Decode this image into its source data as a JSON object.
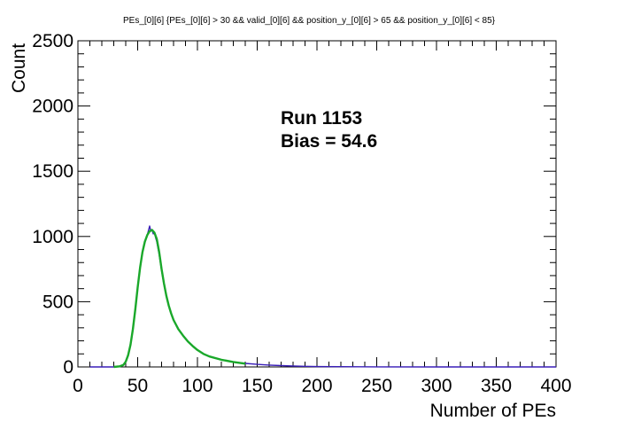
{
  "chart_data": {
    "type": "line",
    "title": "PEs_[0][6]  {PEs_[0][6] > 30 && valid_[0][6] && position_y_[0][6] > 65 && position_y_[0][6] < 85}",
    "xlabel": "Number of PEs",
    "ylabel": "Count",
    "xlim": [
      0,
      400
    ],
    "ylim": [
      0,
      2500
    ],
    "x_ticks": [
      "0",
      "50",
      "100",
      "150",
      "200",
      "250",
      "300",
      "350",
      "400"
    ],
    "y_ticks": [
      "0",
      "500",
      "1000",
      "1500",
      "2000",
      "2500"
    ],
    "annotations": [
      "Run 1153",
      "Bias = 54.6"
    ],
    "grid": false,
    "legend": "none",
    "series": [
      {
        "color": "#3a1fb8",
        "x": [
          10,
          20,
          30,
          35,
          38,
          40,
          42,
          44,
          46,
          48,
          50,
          52,
          54,
          56,
          58,
          60,
          61,
          62,
          63,
          64,
          65,
          66,
          68,
          70,
          72,
          74,
          76,
          78,
          80,
          84,
          88,
          92,
          96,
          100,
          105,
          110,
          120,
          130,
          140,
          150,
          160,
          170,
          180,
          190,
          200,
          220,
          250,
          300,
          350,
          400
        ],
        "y": [
          0,
          0,
          0,
          5,
          15,
          40,
          90,
          170,
          290,
          440,
          610,
          760,
          880,
          960,
          1010,
          1080,
          1040,
          1050,
          1020,
          1030,
          990,
          960,
          860,
          740,
          630,
          540,
          470,
          410,
          360,
          290,
          240,
          195,
          160,
          130,
          100,
          80,
          55,
          38,
          27,
          20,
          14,
          10,
          7,
          5,
          3,
          2,
          1,
          0,
          0,
          0
        ]
      },
      {
        "color": "#1aa82a",
        "x": [
          30,
          35,
          38,
          40,
          42,
          44,
          46,
          48,
          50,
          52,
          54,
          56,
          58,
          60,
          62,
          64,
          66,
          68,
          70,
          72,
          74,
          76,
          78,
          80,
          84,
          88,
          92,
          96,
          100,
          105,
          110,
          120,
          130,
          140
        ],
        "y": [
          0,
          5,
          15,
          40,
          90,
          170,
          290,
          440,
          610,
          760,
          880,
          960,
          1010,
          1040,
          1050,
          1030,
          980,
          880,
          750,
          640,
          545,
          470,
          410,
          360,
          290,
          240,
          195,
          160,
          130,
          100,
          80,
          55,
          38,
          25
        ]
      }
    ]
  }
}
